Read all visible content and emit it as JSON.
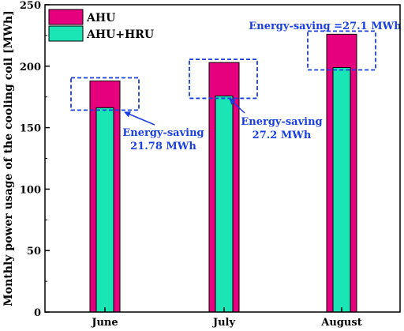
{
  "chart_data": {
    "type": "bar",
    "title": "",
    "xlabel": "",
    "ylabel": "Monthly power usage of the cooling coil [MWh]",
    "ylim": [
      0,
      250
    ],
    "yticks": [
      0,
      50,
      100,
      150,
      200,
      250
    ],
    "categories": [
      "June",
      "July",
      "August"
    ],
    "series": [
      {
        "name": "AHU",
        "values": [
          188,
          203,
          226
        ],
        "color": "#e6007e"
      },
      {
        "name": "AHU+HRU",
        "values": [
          166.2,
          175.8,
          198.9
        ],
        "color": "#19e6b4"
      }
    ],
    "legend_position": "top-left",
    "grid": false,
    "annotations": [
      {
        "category": "June",
        "text_lines": [
          "Energy-saving",
          "21.78 MWh"
        ]
      },
      {
        "category": "July",
        "text_lines": [
          "Energy-saving",
          "27.2 MWh"
        ]
      },
      {
        "category": "August",
        "text_lines": [
          "Energy-saving =27.1 MWh"
        ]
      }
    ],
    "annotation_color": "#1a3fe0"
  }
}
